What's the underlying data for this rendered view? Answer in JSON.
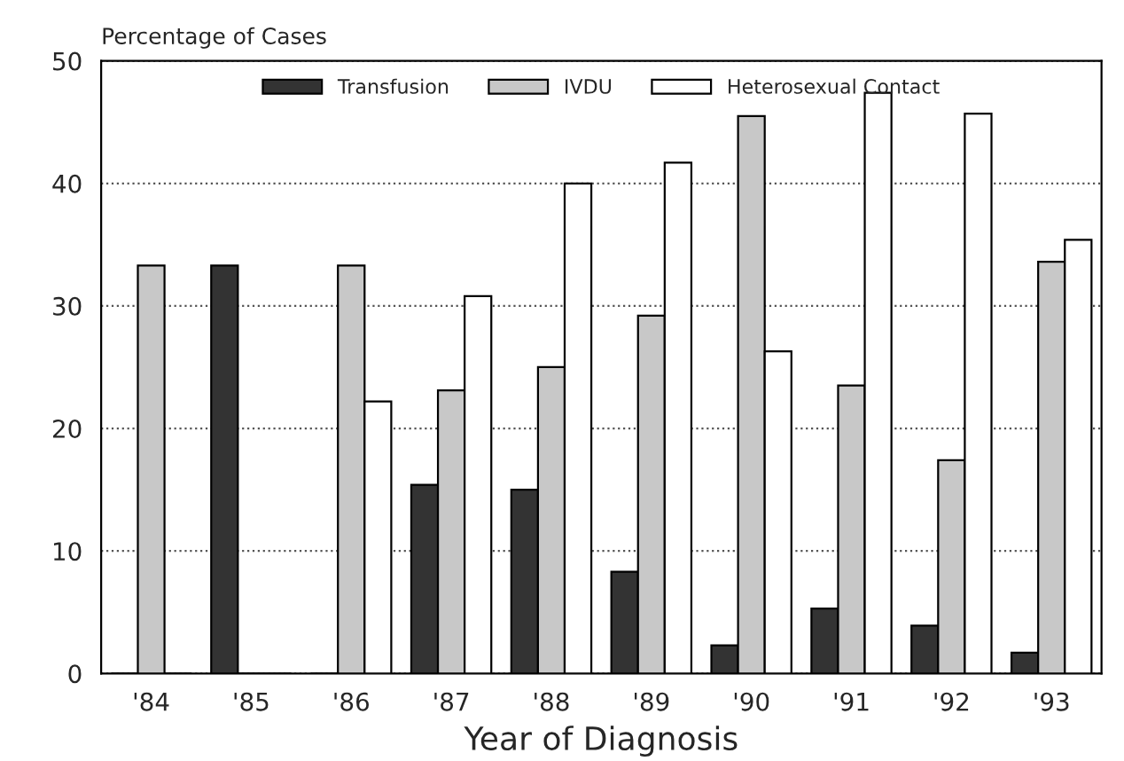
{
  "chart_data": {
    "type": "bar",
    "ylabel": "Percentage of Cases",
    "xlabel": "Year of Diagnosis",
    "categories": [
      "'84",
      "'85",
      "'86",
      "'87",
      "'88",
      "'89",
      "'90",
      "'91",
      "'92",
      "'93"
    ],
    "series": [
      {
        "name": "Transfusion",
        "color": "#333333",
        "values": [
          0,
          33.3,
          0,
          15.4,
          15.0,
          8.3,
          2.3,
          5.3,
          3.9,
          1.7
        ]
      },
      {
        "name": "IVDU",
        "color": "#c8c8c8",
        "values": [
          33.3,
          0,
          33.3,
          23.1,
          25.0,
          29.2,
          45.5,
          23.5,
          17.4,
          33.6
        ]
      },
      {
        "name": "Heterosexual Contact",
        "color": "#ffffff",
        "values": [
          0,
          0,
          22.2,
          30.8,
          40.0,
          41.7,
          26.3,
          47.4,
          45.7,
          35.4
        ]
      }
    ],
    "ylim": [
      0,
      50
    ],
    "yticks": [
      0,
      10,
      20,
      30,
      40,
      50
    ],
    "grid": "y",
    "legend": "top"
  }
}
